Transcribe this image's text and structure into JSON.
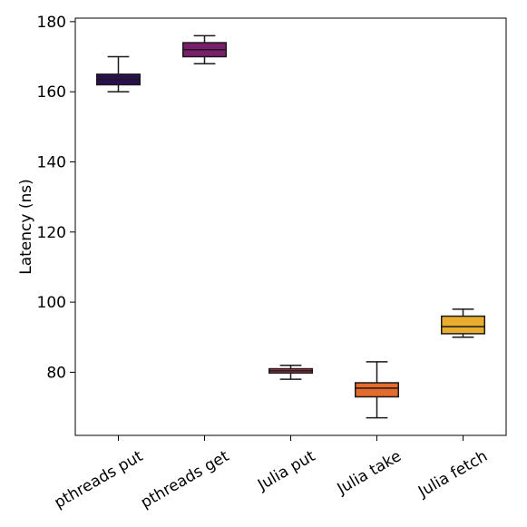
{
  "chart_data": {
    "type": "box",
    "title": "",
    "xlabel": "",
    "ylabel": "Latency (ns)",
    "ylim": [
      62,
      181
    ],
    "yticks": [
      80,
      100,
      120,
      140,
      160,
      180
    ],
    "grid": false,
    "categories": [
      "pthreads put",
      "pthreads get",
      "Julia put",
      "Julia take",
      "Julia fetch"
    ],
    "boxes": [
      {
        "category": "pthreads put",
        "whisker_low": 160,
        "q1": 162,
        "median": 163.5,
        "q3": 165,
        "whisker_high": 170,
        "color": "#2a1052"
      },
      {
        "category": "pthreads get",
        "whisker_low": 168,
        "q1": 170,
        "median": 172,
        "q3": 174,
        "whisker_high": 176,
        "color": "#7a1f6b"
      },
      {
        "category": "Julia put",
        "whisker_low": 78,
        "q1": 79.8,
        "median": 80.4,
        "q3": 81,
        "whisker_high": 82,
        "color": "#c23c4f"
      },
      {
        "category": "Julia take",
        "whisker_low": 67,
        "q1": 73,
        "median": 75.5,
        "q3": 77,
        "whisker_high": 83,
        "color": "#e56b2d"
      },
      {
        "category": "Julia fetch",
        "whisker_low": 90,
        "q1": 91,
        "median": 93,
        "q3": 96,
        "whisker_high": 98,
        "color": "#e8ac2e"
      }
    ]
  }
}
